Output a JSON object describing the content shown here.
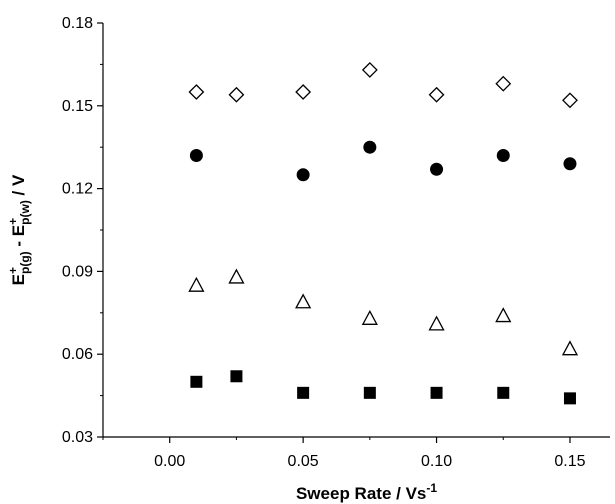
{
  "chart_data": {
    "type": "scatter",
    "title": "",
    "xlabel": "Sweep Rate / Vs",
    "xlabel_superscript": "-1",
    "ylabel": {
      "parts": [
        {
          "text": "E",
          "kind": "normal"
        },
        {
          "text": "+",
          "kind": "sup"
        },
        {
          "text": "p(g)",
          "kind": "sub"
        },
        {
          "text": " - E",
          "kind": "normal"
        },
        {
          "text": "+",
          "kind": "sup"
        },
        {
          "text": "p(w)",
          "kind": "sub"
        },
        {
          "text": " / V",
          "kind": "normal"
        }
      ]
    },
    "xlim": [
      -0.025,
      0.165
    ],
    "ylim": [
      0.03,
      0.18
    ],
    "x_ticks": [
      0.0,
      0.05,
      0.1,
      0.15
    ],
    "x_tick_labels": [
      "0.00",
      "0.05",
      "0.10",
      "0.15"
    ],
    "y_ticks": [
      0.03,
      0.06,
      0.09,
      0.12,
      0.15,
      0.18
    ],
    "y_tick_labels": [
      "0.03",
      "0.06",
      "0.09",
      "0.12",
      "0.15",
      "0.18"
    ],
    "grid": false,
    "legend": "none",
    "series": [
      {
        "marker": "open-diamond",
        "color": "#000000",
        "x": [
          0.01,
          0.025,
          0.05,
          0.075,
          0.1,
          0.125,
          0.15
        ],
        "y": [
          0.155,
          0.154,
          0.155,
          0.163,
          0.154,
          0.158,
          0.152
        ]
      },
      {
        "marker": "filled-circle",
        "color": "#000000",
        "x": [
          0.01,
          0.05,
          0.075,
          0.1,
          0.125,
          0.15
        ],
        "y": [
          0.132,
          0.125,
          0.135,
          0.127,
          0.132,
          0.129
        ]
      },
      {
        "marker": "open-triangle",
        "color": "#000000",
        "x": [
          0.01,
          0.025,
          0.05,
          0.075,
          0.1,
          0.125,
          0.15
        ],
        "y": [
          0.085,
          0.088,
          0.079,
          0.073,
          0.071,
          0.074,
          0.062
        ]
      },
      {
        "marker": "filled-square",
        "color": "#000000",
        "x": [
          0.01,
          0.025,
          0.05,
          0.075,
          0.1,
          0.125,
          0.15
        ],
        "y": [
          0.05,
          0.052,
          0.046,
          0.046,
          0.046,
          0.046,
          0.044
        ]
      }
    ]
  }
}
